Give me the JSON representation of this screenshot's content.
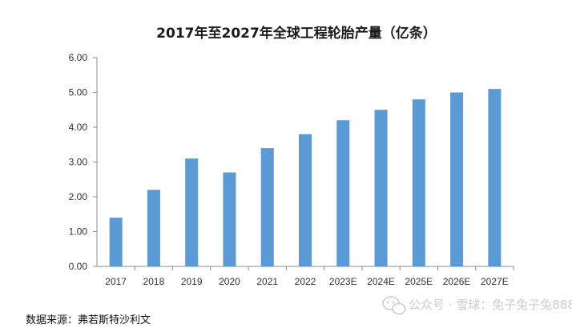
{
  "chart_data": {
    "type": "bar",
    "title": "2017年至2027年全球工程轮胎产量（亿条）",
    "xlabel": "",
    "ylabel": "",
    "categories": [
      "2017",
      "2018",
      "2019",
      "2020",
      "2021",
      "2022",
      "2023E",
      "2024E",
      "2025E",
      "2026E",
      "2027E"
    ],
    "values": [
      1.4,
      2.2,
      3.1,
      2.7,
      3.4,
      3.8,
      4.2,
      4.5,
      4.8,
      5.0,
      5.1
    ],
    "ylim": [
      0,
      6
    ],
    "yticks": [
      "0.00",
      "1.00",
      "2.00",
      "3.00",
      "4.00",
      "5.00",
      "6.00"
    ],
    "grid": false,
    "bar_color": "#5b9bd5",
    "axis_color": "#8c8c8c"
  },
  "footer": {
    "source": "数据来源：弗若斯特沙利文"
  },
  "watermark": {
    "text": "公众号 · 雪球：兔子兔子兔888",
    "icon": "wechat-icon"
  }
}
